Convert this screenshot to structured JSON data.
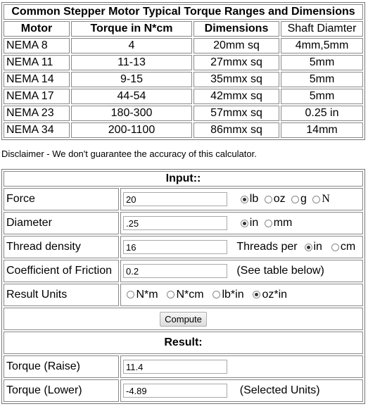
{
  "ref_table": {
    "caption": "Common Stepper Motor Typical Torque Ranges and Dimensions",
    "headers": [
      "Motor",
      "Torque in N*cm",
      "Dimensions",
      "Shaft Diamter"
    ],
    "rows": [
      [
        "NEMA 8",
        "4",
        "20mm sq",
        "4mm,5mm"
      ],
      [
        "NEMA 11",
        "11-13",
        "27mmx sq",
        "5mm"
      ],
      [
        "NEMA 14",
        "9-15",
        "35mmx sq",
        "5mm"
      ],
      [
        "NEMA 17",
        "44-54",
        "42mmx sq",
        "5mm"
      ],
      [
        "NEMA 23",
        "180-300",
        "57mmx sq",
        "0.25 in"
      ],
      [
        "NEMA 34",
        "200-1100",
        "86mmx sq",
        "14mm"
      ]
    ]
  },
  "disclaimer": "Disclaimer - We don't guarantee the accuracy of this calculator.",
  "calc": {
    "input_header": "Input::",
    "force": {
      "label": "Force",
      "value": "20",
      "units": [
        "lb",
        "oz",
        "g",
        "N"
      ],
      "selected": "lb"
    },
    "diameter": {
      "label": "Diameter",
      "value": ".25",
      "units": [
        "in",
        "mm"
      ],
      "selected": "in"
    },
    "thread": {
      "label": "Thread density",
      "value": "16",
      "prefix": "Threads per",
      "units": [
        "in",
        "cm"
      ],
      "selected": "in"
    },
    "friction": {
      "label": "Coefficient of Friction",
      "value": "0.2",
      "note": "(See table below)"
    },
    "result_units": {
      "label": "Result Units",
      "units": [
        "N*m",
        "N*cm",
        "lb*in",
        "oz*in"
      ],
      "selected": "oz*in"
    },
    "compute_label": "Compute",
    "result_header": "Result:",
    "torque_raise": {
      "label": "Torque (Raise)",
      "value": "11.4"
    },
    "torque_lower": {
      "label": "Torque (Lower)",
      "value": "-4.89",
      "note": "(Selected Units)"
    }
  }
}
